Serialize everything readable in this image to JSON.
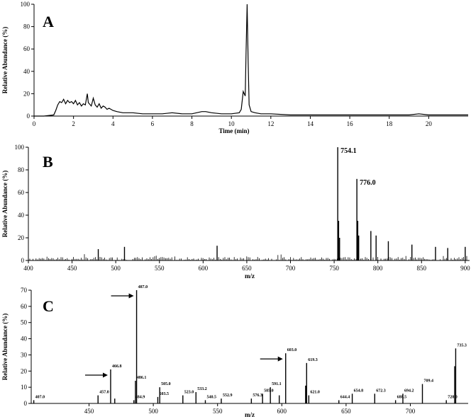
{
  "chart_data": [
    {
      "panel": "A",
      "type": "line",
      "xlabel": "Time (min)",
      "ylabel": "Relative Abundance (%)",
      "xlim": [
        0,
        22
      ],
      "ylim": [
        0,
        100
      ],
      "xticks": [
        0,
        2,
        4,
        6,
        8,
        10,
        12,
        14,
        16,
        18,
        20
      ],
      "yticks": [
        0,
        20,
        40,
        60,
        80,
        100
      ],
      "series": [
        {
          "x": [
            0,
            0.5,
            1.0,
            1.1,
            1.2,
            1.3,
            1.4,
            1.5,
            1.6,
            1.7,
            1.8,
            1.9,
            2.0,
            2.1,
            2.2,
            2.3,
            2.4,
            2.5,
            2.6,
            2.7,
            2.75,
            2.8,
            2.9,
            3.0,
            3.1,
            3.2,
            3.3,
            3.4,
            3.5,
            3.6,
            3.7,
            3.8,
            3.9,
            4.0,
            4.2,
            4.5,
            5.0,
            5.5,
            6.0,
            6.5,
            7.0,
            7.5,
            8.0,
            8.5,
            8.7,
            9.0,
            9.5,
            10.0,
            10.4,
            10.5,
            10.6,
            10.7,
            10.75,
            10.8,
            10.85,
            10.9,
            11.0,
            11.2,
            11.5,
            12.0,
            13.0,
            14.0,
            15.0,
            16.0,
            17.0,
            18.0,
            19.0,
            19.5,
            20.0,
            21.0,
            22.0
          ],
          "y": [
            0,
            0,
            1,
            5,
            10,
            13,
            12,
            15,
            11,
            14,
            12,
            13,
            11,
            14,
            10,
            12,
            9,
            11,
            10,
            20,
            12,
            11,
            9,
            16,
            10,
            8,
            11,
            7,
            9,
            8,
            6,
            7,
            6,
            5,
            4,
            3,
            3,
            2,
            2,
            2,
            3,
            2,
            2,
            4,
            4,
            3,
            2,
            2,
            3,
            6,
            22,
            18,
            60,
            100,
            50,
            10,
            4,
            3,
            2,
            2,
            1,
            1,
            1,
            1,
            1,
            1,
            1,
            2,
            1,
            1,
            1
          ]
        }
      ]
    },
    {
      "panel": "B",
      "type": "bar",
      "xlabel": "m/z",
      "ylabel": "Relative Abundance (%)",
      "xlim": [
        400,
        905
      ],
      "ylim": [
        0,
        100
      ],
      "xticks": [
        400,
        450,
        500,
        550,
        600,
        650,
        700,
        750,
        800,
        850,
        900
      ],
      "yticks": [
        0,
        20,
        40,
        60,
        80,
        100
      ],
      "peaks": [
        {
          "mz": 754.1,
          "intensity": 100,
          "label": "754.1"
        },
        {
          "mz": 776.0,
          "intensity": 72,
          "label": "776.0"
        },
        {
          "mz": 755.1,
          "intensity": 35
        },
        {
          "mz": 777.0,
          "intensity": 35
        },
        {
          "mz": 756.2,
          "intensity": 20
        },
        {
          "mz": 778.1,
          "intensity": 22
        },
        {
          "mz": 792.0,
          "intensity": 26
        },
        {
          "mz": 798.0,
          "intensity": 22
        },
        {
          "mz": 812.0,
          "intensity": 17
        },
        {
          "mz": 839.0,
          "intensity": 14
        },
        {
          "mz": 510.0,
          "intensity": 12
        },
        {
          "mz": 616.0,
          "intensity": 13
        },
        {
          "mz": 480.0,
          "intensity": 10
        },
        {
          "mz": 866.0,
          "intensity": 12
        },
        {
          "mz": 880.0,
          "intensity": 11
        },
        {
          "mz": 900.0,
          "intensity": 12
        }
      ]
    },
    {
      "panel": "C",
      "type": "bar",
      "xlabel": "m/z",
      "ylabel": "Relative Abundance (%)",
      "xlim": [
        405,
        745
      ],
      "ylim": [
        0,
        70
      ],
      "xticks": [
        450,
        500,
        550,
        600,
        650,
        700
      ],
      "yticks": [
        0,
        10,
        20,
        30,
        40,
        50,
        60,
        70
      ],
      "peaks": [
        {
          "mz": 407.0,
          "intensity": 2,
          "label": "407.0"
        },
        {
          "mz": 457.0,
          "intensity": 5,
          "label": "457.0"
        },
        {
          "mz": 466.8,
          "intensity": 21,
          "label": "466.8"
        },
        {
          "mz": 484.9,
          "intensity": 2,
          "label": "484.9"
        },
        {
          "mz": 486.1,
          "intensity": 14,
          "label": "486.1"
        },
        {
          "mz": 487.0,
          "intensity": 70,
          "label": "487.0"
        },
        {
          "mz": 503.5,
          "intensity": 4,
          "label": "503.5"
        },
        {
          "mz": 505.0,
          "intensity": 10,
          "label": "505.0"
        },
        {
          "mz": 523.0,
          "intensity": 5,
          "label": "523.0"
        },
        {
          "mz": 533.2,
          "intensity": 7,
          "label": "533.2"
        },
        {
          "mz": 540.5,
          "intensity": 2,
          "label": "540.5"
        },
        {
          "mz": 552.9,
          "intensity": 3,
          "label": "552.9"
        },
        {
          "mz": 576.3,
          "intensity": 3,
          "label": "576.3"
        },
        {
          "mz": 585.0,
          "intensity": 6,
          "label": "585.0"
        },
        {
          "mz": 591.1,
          "intensity": 10,
          "label": "591.1"
        },
        {
          "mz": 603.0,
          "intensity": 31,
          "label": "603.0"
        },
        {
          "mz": 619.3,
          "intensity": 25,
          "label": "619.3"
        },
        {
          "mz": 621.0,
          "intensity": 5,
          "label": "621.0"
        },
        {
          "mz": 644.4,
          "intensity": 2,
          "label": "644.4"
        },
        {
          "mz": 654.8,
          "intensity": 6,
          "label": "654.8"
        },
        {
          "mz": 672.3,
          "intensity": 6,
          "label": "672.3"
        },
        {
          "mz": 688.5,
          "intensity": 2,
          "label": "688.5"
        },
        {
          "mz": 694.2,
          "intensity": 6,
          "label": "694.2"
        },
        {
          "mz": 709.4,
          "intensity": 12,
          "label": "709.4"
        },
        {
          "mz": 728.0,
          "intensity": 2,
          "label": "728.0"
        },
        {
          "mz": 735.3,
          "intensity": 34,
          "label": "735.3"
        },
        {
          "mz": 618.5,
          "intensity": 11
        },
        {
          "mz": 734.5,
          "intensity": 23
        },
        {
          "mz": 598.0,
          "intensity": 5
        },
        {
          "mz": 470.0,
          "intensity": 3
        }
      ],
      "arrows_at": [
        466.8,
        487.0,
        603.0
      ]
    }
  ]
}
